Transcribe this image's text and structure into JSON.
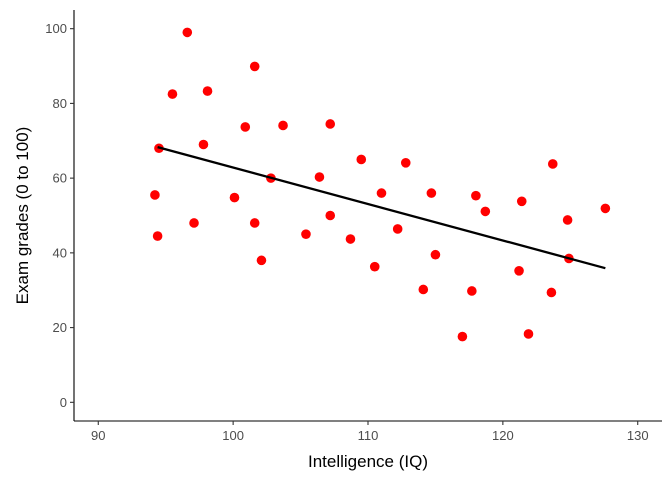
{
  "chart_data": {
    "type": "scatter",
    "xlabel": "Intelligence (IQ)",
    "ylabel": "Exam grades (0 to 100)",
    "xlim": [
      88.2,
      131.8
    ],
    "ylim": [
      -5,
      105
    ],
    "x_ticks": [
      90,
      100,
      110,
      120,
      130
    ],
    "y_ticks": [
      0,
      20,
      40,
      60,
      80,
      100
    ],
    "grid": false,
    "point_color": "#ff0000",
    "line_color": "#000000",
    "points": [
      {
        "x": 94.2,
        "y": 55.5
      },
      {
        "x": 94.4,
        "y": 44.5
      },
      {
        "x": 94.5,
        "y": 68.0
      },
      {
        "x": 95.5,
        "y": 82.5
      },
      {
        "x": 96.6,
        "y": 99.0
      },
      {
        "x": 97.1,
        "y": 48.0
      },
      {
        "x": 97.8,
        "y": 69.0
      },
      {
        "x": 98.1,
        "y": 83.3
      },
      {
        "x": 100.1,
        "y": 54.8
      },
      {
        "x": 100.9,
        "y": 73.7
      },
      {
        "x": 101.6,
        "y": 89.9
      },
      {
        "x": 101.6,
        "y": 48.0
      },
      {
        "x": 102.1,
        "y": 38.0
      },
      {
        "x": 102.8,
        "y": 60.0
      },
      {
        "x": 103.7,
        "y": 74.1
      },
      {
        "x": 105.4,
        "y": 45.0
      },
      {
        "x": 106.4,
        "y": 60.3
      },
      {
        "x": 107.2,
        "y": 74.5
      },
      {
        "x": 107.2,
        "y": 50.0
      },
      {
        "x": 108.7,
        "y": 43.7
      },
      {
        "x": 109.5,
        "y": 65.0
      },
      {
        "x": 110.5,
        "y": 36.3
      },
      {
        "x": 111.0,
        "y": 56.0
      },
      {
        "x": 112.2,
        "y": 46.4
      },
      {
        "x": 112.8,
        "y": 64.1
      },
      {
        "x": 114.1,
        "y": 30.2
      },
      {
        "x": 114.7,
        "y": 56.0
      },
      {
        "x": 115.0,
        "y": 39.5
      },
      {
        "x": 117.0,
        "y": 17.6
      },
      {
        "x": 117.7,
        "y": 29.8
      },
      {
        "x": 118.0,
        "y": 55.3
      },
      {
        "x": 118.7,
        "y": 51.1
      },
      {
        "x": 121.2,
        "y": 35.2
      },
      {
        "x": 121.4,
        "y": 53.8
      },
      {
        "x": 121.9,
        "y": 18.3
      },
      {
        "x": 123.6,
        "y": 29.4
      },
      {
        "x": 123.7,
        "y": 63.8
      },
      {
        "x": 124.8,
        "y": 48.8
      },
      {
        "x": 124.9,
        "y": 38.5
      },
      {
        "x": 127.6,
        "y": 51.9
      }
    ],
    "trend_line": {
      "x": [
        94.4,
        127.6
      ],
      "y": [
        68.3,
        35.9
      ]
    }
  }
}
